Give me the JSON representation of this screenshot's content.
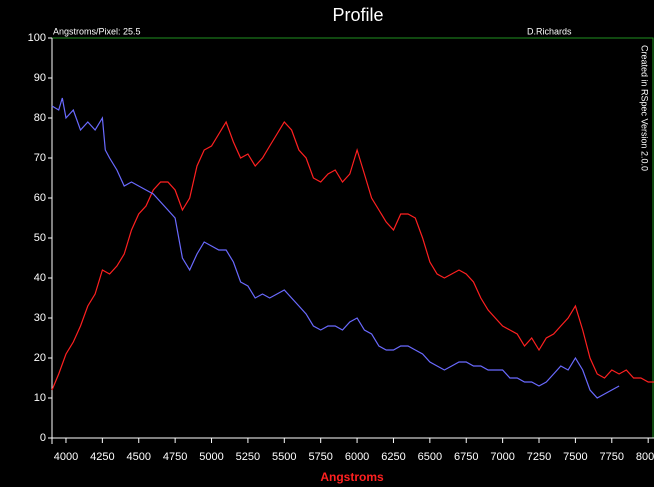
{
  "chart_data": {
    "type": "line",
    "title": "Profile",
    "x_label": "Angstroms",
    "annotations": [
      "Angstroms/Pixel: 25.5",
      "D.Richards",
      "Created in RSpec Version 2.0.0"
    ],
    "xlim": [
      3904,
      8040
    ],
    "ylim": [
      0,
      100
    ],
    "xticks": [
      4000,
      4250,
      4500,
      4750,
      5000,
      5250,
      5500,
      5750,
      6000,
      6250,
      6500,
      6750,
      7000,
      7250,
      7500,
      7750,
      8000
    ],
    "yticks": [
      0,
      10,
      20,
      30,
      40,
      50,
      60,
      70,
      80,
      90,
      100
    ],
    "series": [
      {
        "color": "#ff2020",
        "x": [
          3904,
          3950,
          4000,
          4050,
          4100,
          4150,
          4200,
          4250,
          4300,
          4350,
          4400,
          4450,
          4500,
          4550,
          4600,
          4650,
          4700,
          4750,
          4800,
          4850,
          4900,
          4950,
          5000,
          5050,
          5100,
          5150,
          5200,
          5250,
          5300,
          5350,
          5400,
          5450,
          5500,
          5550,
          5600,
          5650,
          5700,
          5750,
          5800,
          5850,
          5900,
          5950,
          6000,
          6050,
          6100,
          6150,
          6200,
          6250,
          6300,
          6350,
          6400,
          6450,
          6500,
          6550,
          6600,
          6650,
          6700,
          6750,
          6800,
          6850,
          6900,
          6950,
          7000,
          7050,
          7100,
          7150,
          7200,
          7250,
          7300,
          7350,
          7400,
          7450,
          7500,
          7550,
          7600,
          7650,
          7700,
          7750,
          7800,
          7850,
          7900,
          7950,
          8000,
          8040
        ],
        "values": [
          12,
          16,
          21,
          24,
          28,
          33,
          36,
          42,
          41,
          43,
          46,
          52,
          56,
          58,
          62,
          64,
          64,
          62,
          57,
          60,
          68,
          72,
          73,
          76,
          79,
          74,
          70,
          71,
          68,
          70,
          73,
          76,
          79,
          77,
          72,
          70,
          65,
          64,
          66,
          67,
          64,
          66,
          72,
          66,
          60,
          57,
          54,
          52,
          56,
          56,
          55,
          50,
          44,
          41,
          40,
          41,
          42,
          41,
          39,
          35,
          32,
          30,
          28,
          27,
          26,
          23,
          25,
          22,
          25,
          26,
          28,
          30,
          33,
          27,
          20,
          16,
          15,
          17,
          16,
          17,
          15,
          15,
          14,
          14
        ]
      },
      {
        "color": "#6a6aff",
        "x": [
          3904,
          3950,
          3975,
          4000,
          4050,
          4100,
          4150,
          4200,
          4250,
          4270,
          4300,
          4350,
          4400,
          4450,
          4500,
          4550,
          4600,
          4650,
          4700,
          4750,
          4800,
          4850,
          4900,
          4950,
          5000,
          5050,
          5100,
          5150,
          5200,
          5250,
          5300,
          5350,
          5400,
          5450,
          5500,
          5550,
          5600,
          5650,
          5700,
          5750,
          5800,
          5850,
          5900,
          5950,
          6000,
          6050,
          6100,
          6150,
          6200,
          6250,
          6300,
          6350,
          6400,
          6450,
          6500,
          6550,
          6600,
          6650,
          6700,
          6750,
          6800,
          6850,
          6900,
          6950,
          7000,
          7050,
          7100,
          7150,
          7200,
          7250,
          7300,
          7350,
          7400,
          7450,
          7500,
          7550,
          7600,
          7650,
          7700,
          7750,
          7800
        ],
        "values": [
          83,
          82,
          85,
          80,
          82,
          77,
          79,
          77,
          80,
          72,
          70,
          67,
          63,
          64,
          63,
          62,
          61,
          59,
          57,
          55,
          45,
          42,
          46,
          49,
          48,
          47,
          47,
          44,
          39,
          38,
          35,
          36,
          35,
          36,
          37,
          35,
          33,
          31,
          28,
          27,
          28,
          28,
          27,
          29,
          30,
          27,
          26,
          23,
          22,
          22,
          23,
          23,
          22,
          21,
          19,
          18,
          17,
          18,
          19,
          19,
          18,
          18,
          17,
          17,
          17,
          15,
          15,
          14,
          14,
          13,
          14,
          16,
          18,
          17,
          20,
          17,
          12,
          10,
          11,
          12,
          13
        ]
      }
    ]
  }
}
